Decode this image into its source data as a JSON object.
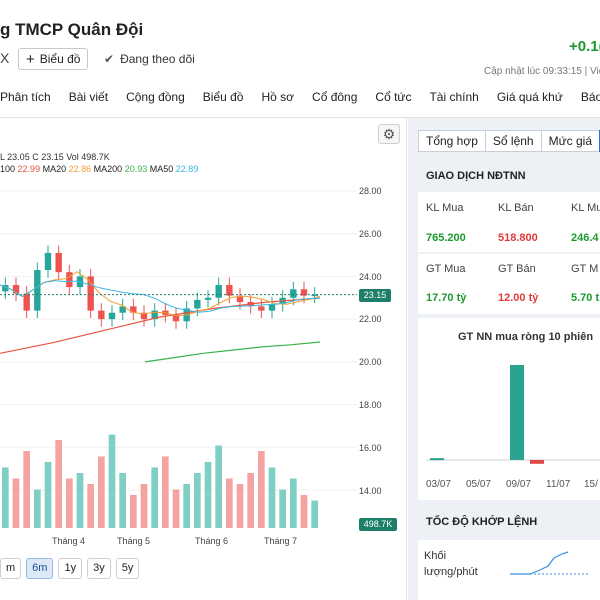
{
  "header": {
    "company": "g TMCP Quân Đội",
    "exchange_fragment": "X",
    "chart_button": "Biểu đồ",
    "follow_label": "Đang theo dõi",
    "change": "+0.1(",
    "updated": "Cập nhật lúc  09:33:15 | Việ"
  },
  "nav": {
    "items": [
      "Phân tích",
      "Bài viết",
      "Cộng đồng",
      "Biểu đồ",
      "Hồ sơ",
      "Cổ đông",
      "Cổ tức",
      "Tài chính",
      "Giá quá khứ",
      "Báo cáo"
    ]
  },
  "chart": {
    "ohlc_line": "L 23.05  C 23.15  Vol 498.7K",
    "ma_line": {
      "ma100_label": "100",
      "ma100_value": "22.99",
      "ma20_label": "MA20",
      "ma20_value": "22.86",
      "ma200_label": "MA200",
      "ma200_value": "20.93",
      "ma50_label": "MA50",
      "ma50_value": "22.89"
    },
    "last_price": "23.15",
    "last_volume": "498.7K",
    "ranges": [
      "m",
      "6m",
      "1y",
      "3y",
      "5y"
    ],
    "active_range": "6m"
  },
  "chart_data": {
    "type": "line",
    "x_labels": [
      "Tháng 4",
      "Tháng 5",
      "Tháng 6",
      "Tháng 7"
    ],
    "y_ticks": [
      "28.00",
      "26.00",
      "24.00",
      "22.00",
      "20.00",
      "18.00",
      "16.00",
      "14.00"
    ],
    "ylim": [
      13,
      28.5
    ],
    "series": [
      {
        "name": "MA200",
        "values": [
          20.0,
          20.2,
          20.4,
          20.55,
          20.7,
          20.8,
          20.93
        ]
      },
      {
        "name": "MA100",
        "values": [
          20.4,
          20.9,
          21.5,
          22.1,
          22.5,
          22.8,
          22.99
        ]
      }
    ],
    "close_values": [
      23.6,
      23.2,
      22.4,
      24.3,
      25.1,
      24.2,
      23.5,
      24.0,
      22.4,
      22.0,
      22.3,
      22.6,
      22.3,
      22.0,
      22.4,
      22.2,
      21.9,
      22.5,
      22.9,
      23.0,
      23.6,
      23.1,
      22.8,
      22.6,
      22.4,
      22.7,
      23.0,
      23.4,
      23.1,
      23.15
    ],
    "volume_relative": [
      0.55,
      0.45,
      0.7,
      0.35,
      0.6,
      0.8,
      0.45,
      0.5,
      0.4,
      0.65,
      0.85,
      0.5,
      0.3,
      0.4,
      0.55,
      0.65,
      0.35,
      0.4,
      0.5,
      0.6,
      0.75,
      0.45,
      0.4,
      0.5,
      0.7,
      0.55,
      0.35,
      0.45,
      0.3,
      0.25
    ],
    "colors": {
      "up": "#26a69a",
      "down": "#ef5350",
      "ma100": "#e8553e",
      "ma200": "#3cb34a",
      "ma50": "#39b7e6",
      "ma20": "#f0a030"
    }
  },
  "right": {
    "tabs": [
      "Tổng hợp",
      "Sổ lệnh",
      "Mức giá"
    ],
    "ndtnn_title": "GIAO DỊCH NĐTNN",
    "kl_labels": [
      "KL Mua",
      "KL Bán",
      "KL Mu"
    ],
    "kl_values": [
      "765.200",
      "518.800",
      "246.4"
    ],
    "gt_labels": [
      "GT Mua",
      "GT Bán",
      "GT M"
    ],
    "gt_values": [
      "17.70 tỷ",
      "12.00 tỷ",
      "5.70 t"
    ],
    "nn_title": "GT NN mua ròng 10 phiên",
    "nn_dates": [
      "03/07",
      "05/07",
      "09/07",
      "11/07",
      "15/"
    ],
    "nn_bars": [
      0.02,
      0,
      0,
      0,
      1.0,
      -0.04,
      0,
      0
    ],
    "speed_title": "TỐC ĐỘ KHỚP LỆNH",
    "speed_label": "Khối lượng/phút"
  }
}
